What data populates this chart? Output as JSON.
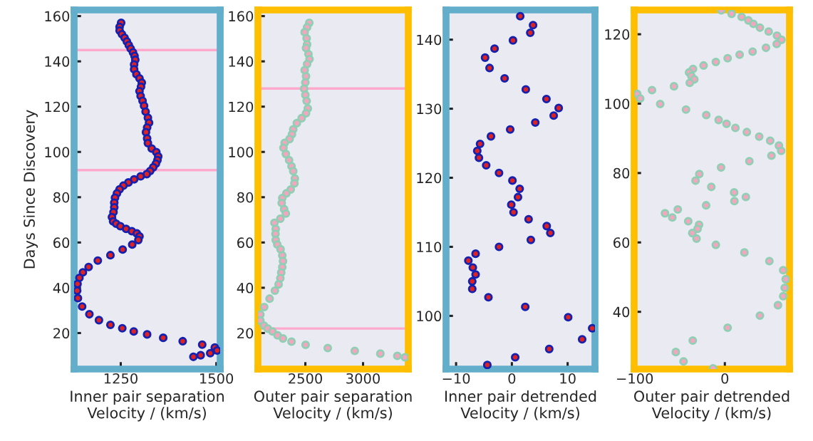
{
  "chart_data": [
    {
      "type": "scatter",
      "xlabel": "Inner pair separation\nVelocity / (km/s)",
      "ylabel": "Days Since Discovery",
      "marker": "circle",
      "xlim": [
        1128,
        1510
      ],
      "ylim": [
        4.1,
        162.7
      ],
      "xticks": [
        1250,
        1500
      ],
      "yticks": [
        20,
        40,
        60,
        80,
        100,
        120,
        140,
        160
      ],
      "ref_lines": [
        {
          "axis": "y",
          "value": 145,
          "color": "#ffaacc"
        },
        {
          "axis": "y",
          "value": 92,
          "color": "#ffaacc"
        }
      ],
      "series": [
        {
          "color": "#dd2222",
          "x": [
            1251,
            1247,
            1247,
            1253,
            1260,
            1266,
            1271,
            1276,
            1282,
            1286,
            1288,
            1285,
            1285,
            1291,
            1299,
            1305,
            1303,
            1299,
            1302,
            1307,
            1311,
            1315,
            1321,
            1324,
            1319,
            1316,
            1319,
            1321,
            1331,
            1343,
            1348,
            1346,
            1342,
            1335,
            1327,
            1318,
            1302,
            1285,
            1270,
            1257,
            1247,
            1240,
            1235,
            1233,
            1233,
            1231,
            1227,
            1230,
            1238,
            1249,
            1264,
            1279,
            1292,
            1299,
            1296,
            1280,
            1255,
            1223,
            1190,
            1166,
            1151,
            1142,
            1137,
            1136,
            1138,
            1149,
            1168,
            1193,
            1223,
            1254,
            1284,
            1319,
            1361,
            1412,
            1463,
            1496,
            1502,
            1484,
            1459,
            1440
          ],
          "values": [
            157.0,
            155.2,
            153.6,
            152.0,
            150.4,
            148.8,
            147.2,
            145.6,
            144.0,
            142.4,
            140.7,
            138.6,
            136.5,
            134.3,
            132.5,
            130.6,
            128.8,
            126.8,
            124.7,
            122.6,
            120.4,
            117.8,
            115.1,
            112.9,
            110.8,
            108.7,
            106.0,
            103.9,
            101.5,
            99.9,
            98.0,
            96.4,
            94.8,
            93.2,
            91.6,
            90.2,
            89.2,
            87.9,
            86.5,
            85.1,
            83.5,
            81.7,
            79.8,
            77.6,
            75.5,
            73.4,
            71.2,
            69.3,
            68.3,
            67.2,
            66.0,
            65.0,
            64.0,
            62.7,
            61.1,
            59.1,
            56.9,
            54.4,
            52.0,
            49.2,
            46.8,
            44.4,
            41.7,
            38.7,
            35.4,
            31.7,
            28.3,
            25.7,
            23.6,
            22.1,
            20.7,
            19.4,
            17.9,
            16.4,
            14.9,
            13.6,
            12.3,
            11.1,
            10.2,
            9.5
          ]
        }
      ]
    },
    {
      "type": "scatter",
      "xlabel": "Outer pair separation\nVelocity / (km/s)",
      "marker": "circle",
      "xlim": [
        2089,
        3392
      ],
      "ylim": [
        4.1,
        162.7
      ],
      "xticks": [
        2500,
        3000
      ],
      "yticks": [
        20,
        40,
        60,
        80,
        100,
        120,
        140,
        160
      ],
      "ref_lines": [
        {
          "axis": "y",
          "value": 128,
          "color": "#ffaacc"
        },
        {
          "axis": "y",
          "value": 22,
          "color": "#ffaacc"
        }
      ],
      "series": [
        {
          "color": "#f4a6c0",
          "x": [
            2534,
            2515,
            2494,
            2511,
            2515,
            2506,
            2527,
            2536,
            2515,
            2494,
            2506,
            2500,
            2489,
            2500,
            2511,
            2521,
            2506,
            2468,
            2426,
            2395,
            2384,
            2363,
            2321,
            2310,
            2331,
            2359,
            2380,
            2395,
            2409,
            2405,
            2373,
            2335,
            2300,
            2295,
            2316,
            2331,
            2283,
            2232,
            2243,
            2241,
            2243,
            2257,
            2285,
            2300,
            2306,
            2300,
            2291,
            2283,
            2268,
            2236,
            2190,
            2143,
            2110,
            2110,
            2141,
            2173,
            2215,
            2259,
            2306,
            2380,
            2502,
            2694,
            2928,
            3150,
            3297,
            3363
          ],
          "values": [
            157.0,
            155.1,
            152.9,
            150.2,
            147.5,
            145.9,
            143.2,
            141.0,
            138.8,
            136.1,
            133.4,
            130.7,
            127.9,
            125.2,
            122.5,
            119.2,
            117.1,
            114.9,
            112.7,
            110.0,
            107.8,
            105.7,
            104.0,
            101.8,
            99.1,
            96.4,
            93.7,
            91.5,
            88.3,
            86.1,
            83.4,
            81.7,
            79.6,
            77.4,
            74.7,
            72.8,
            70.5,
            68.7,
            66.0,
            63.8,
            61.1,
            59.1,
            57.0,
            54.3,
            51.8,
            49.1,
            46.7,
            44.2,
            41.5,
            38.7,
            35.2,
            31.5,
            28.2,
            25.5,
            23.3,
            22.0,
            20.7,
            19.0,
            17.6,
            16.2,
            14.8,
            13.4,
            12.1,
            10.9,
            9.9,
            9.3
          ]
        }
      ]
    },
    {
      "type": "scatter",
      "xlabel": "Inner pair detrended\nVelocity / (km/s)",
      "marker": "circle",
      "xlim": [
        -11.8,
        14.9
      ],
      "ylim": [
        92.3,
        144.3
      ],
      "xticks": [
        {
          "value": -10,
          "label": "−10"
        },
        0,
        10
      ],
      "yticks": [
        100,
        110,
        120,
        130,
        140
      ],
      "series": [
        {
          "color": "#dd2222",
          "x": [
            1.5,
            3.8,
            3.3,
            0.2,
            -3.1,
            -4.8,
            -4.0,
            -1.3,
            2.5,
            6.2,
            8.4,
            7.5,
            4.2,
            -0.3,
            -3.75,
            -5.7,
            -6.2,
            -5.9,
            -4.6,
            -2.3,
            0.1,
            1.4,
            1.1,
            -0.1,
            0.3,
            3.0,
            6.25,
            6.9,
            3.4,
            -2.3,
            -6.5,
            -7.8,
            -7.0,
            -6.5,
            -7.1,
            -7.1,
            -4.2,
            2.4,
            10.1,
            14.4,
            12.6,
            6.7,
            0.6,
            -4.4
          ],
          "values": [
            143.4,
            142.1,
            141.0,
            139.9,
            138.7,
            137.4,
            135.9,
            134.4,
            132.8,
            131.4,
            130.1,
            129.0,
            128.0,
            127.0,
            126.0,
            124.9,
            123.9,
            122.9,
            121.8,
            120.7,
            119.6,
            118.4,
            117.2,
            116.1,
            115.0,
            114.0,
            113.0,
            112.0,
            111.0,
            110.0,
            109.0,
            108.0,
            107.0,
            106.0,
            105.0,
            103.9,
            102.7,
            101.3,
            99.8,
            98.2,
            96.6,
            95.2,
            94.0,
            92.9
          ]
        }
      ]
    },
    {
      "type": "scatter",
      "xlabel": "Outer pair detrended\nVelocity / (km/s)",
      "marker": "circle",
      "xlim": [
        -100.6,
        71.7
      ],
      "ylim": [
        23.5,
        127.0
      ],
      "xticks": [
        {
          "value": -100,
          "label": "−100"
        },
        0
      ],
      "yticks": [
        40,
        60,
        80,
        100,
        120
      ],
      "series": [
        {
          "color": "#f4a6c0",
          "x": [
            -3.9,
            7.5,
            18.6,
            26.1,
            31.7,
            38.9,
            48.6,
            57.8,
            62.8,
            57.5,
            45.6,
            30.8,
            16.4,
            3.1,
            -10.0,
            -23.6,
            -35.3,
            -39.7,
            -37.2,
            -33.9,
            -38.9,
            -56.4,
            -80.8,
            -97.2,
            -93.9,
            -71.7,
            -43.1,
            -20.6,
            -6.9,
            1.9,
            11.7,
            24.4,
            38.1,
            50.3,
            60.0,
            62.5,
            51.7,
            27.2,
            -4.2,
            -28.3,
            -32.5,
            -15.0,
            10.3,
            23.3,
            10.6,
            -20.8,
            -52.2,
            -66.4,
            -58.3,
            -40.6,
            -28.6,
            -30.3,
            -36.1,
            -31.4,
            -10.0,
            21.7,
            49.4,
            64.7,
            67.5,
            66.4,
            64.7,
            58.9,
            38.9,
            3.1,
            -35.6,
            -54.4,
            -45.8,
            -13.1
          ],
          "values": [
            126.9,
            125.9,
            125.0,
            124.0,
            123.0,
            121.9,
            120.8,
            119.6,
            118.4,
            117.2,
            116.1,
            115.0,
            114.1,
            113.1,
            112.0,
            111.0,
            110.0,
            109.0,
            108.0,
            107.0,
            106.0,
            105.0,
            103.9,
            102.8,
            101.5,
            99.9,
            98.3,
            96.7,
            95.3,
            94.2,
            93.0,
            91.8,
            90.5,
            89.3,
            87.9,
            86.4,
            85.0,
            83.4,
            81.6,
            79.7,
            77.8,
            76.0,
            74.4,
            73.1,
            71.9,
            70.7,
            69.5,
            68.4,
            67.2,
            66.1,
            65.1,
            63.9,
            62.7,
            61.1,
            59.3,
            57.1,
            54.6,
            52.0,
            49.4,
            46.9,
            44.5,
            41.9,
            38.9,
            35.4,
            31.7,
            28.4,
            25.7,
            23.7
          ]
        }
      ]
    }
  ]
}
